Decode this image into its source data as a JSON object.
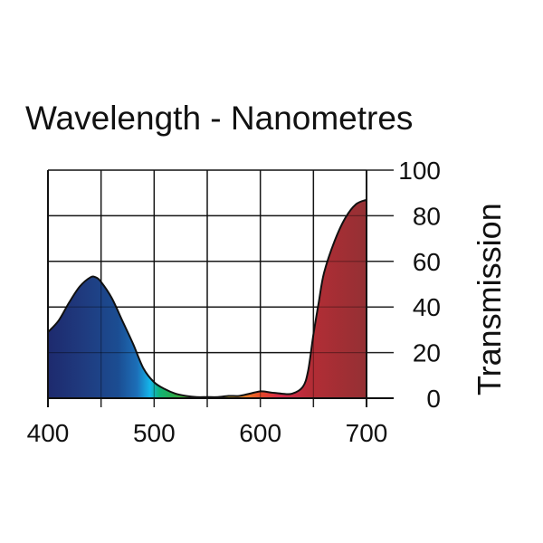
{
  "chart_data": {
    "type": "area",
    "title": "Wavelength - Nanometres",
    "xlabel": "",
    "ylabel": "Transmission",
    "xlim": [
      400,
      700
    ],
    "ylim": [
      0,
      100
    ],
    "x_ticks": [
      400,
      500,
      600,
      700
    ],
    "x_tick_labels": [
      "400",
      "500",
      "600",
      "700"
    ],
    "y_ticks": [
      0,
      20,
      40,
      60,
      80,
      100
    ],
    "y_tick_labels": [
      "0",
      "20",
      "40",
      "60",
      "80",
      "100"
    ],
    "y_axis_side": "right",
    "grid": true,
    "grid_x_step": 50,
    "fill": "spectrum",
    "series": [
      {
        "x": [
          400,
          410,
          420,
          430,
          440,
          445,
          450,
          460,
          470,
          480,
          490,
          500,
          510,
          520,
          530,
          540,
          550,
          560,
          570,
          580,
          590,
          600,
          610,
          620,
          630,
          640,
          645,
          650,
          655,
          660,
          670,
          680,
          690,
          700
        ],
        "values": [
          29,
          34,
          42,
          49,
          53,
          53,
          51,
          44,
          34,
          24,
          13,
          7,
          4,
          2,
          1,
          0.5,
          0.5,
          0.5,
          1,
          1,
          2,
          3,
          2.5,
          2,
          2,
          5,
          12,
          28,
          42,
          55,
          69,
          79,
          85,
          87
        ]
      }
    ]
  }
}
